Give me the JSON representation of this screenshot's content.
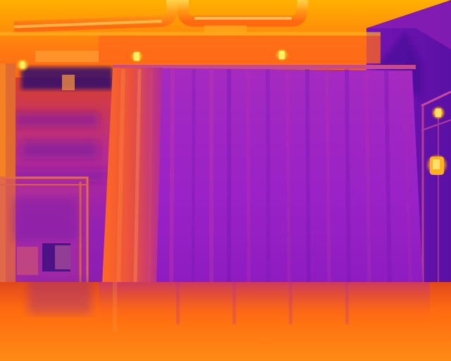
{
  "image": {
    "kind": "thermal-camera-view",
    "palette": [
      "#2a0a6e",
      "#6a10b8",
      "#9b22c8",
      "#c43aa6",
      "#ff4a1a",
      "#ff7a10",
      "#ffb000",
      "#ffe34a"
    ],
    "subjects": [
      "curtain",
      "ceiling-pipes",
      "ceiling-lights",
      "wall-lamps",
      "window-frame",
      "floor"
    ]
  }
}
